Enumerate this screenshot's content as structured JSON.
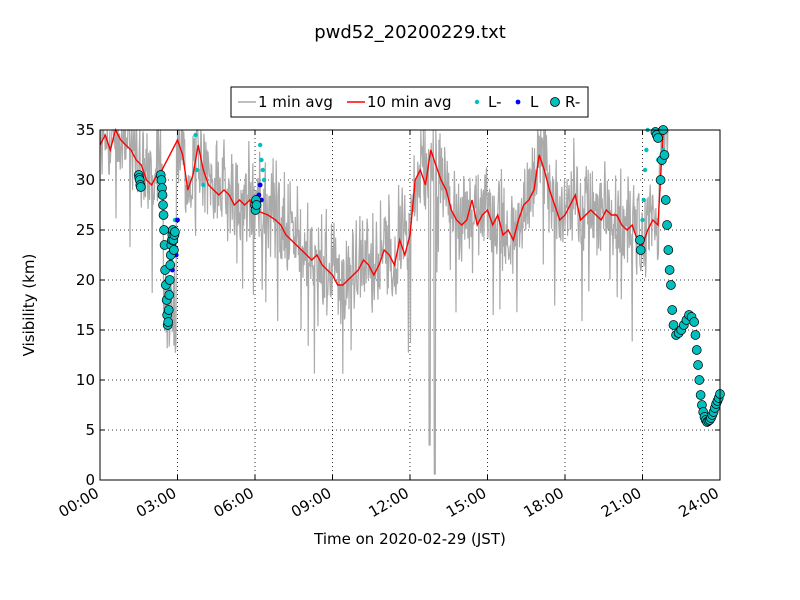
{
  "chart_data": {
    "type": "line",
    "title": "pwd52_20200229.txt",
    "xlabel": "Time on 2020-02-29 (JST)",
    "ylabel": "Visibility (km)",
    "xlim_hours": [
      0,
      24
    ],
    "ylim": [
      0,
      35
    ],
    "grid": true,
    "legend_position": "top-center, above plot",
    "x_tick_labels": [
      "00:00",
      "03:00",
      "06:00",
      "09:00",
      "12:00",
      "15:00",
      "18:00",
      "21:00",
      "24:00"
    ],
    "y_tick_labels": [
      "0",
      "5",
      "10",
      "15",
      "20",
      "25",
      "30",
      "35"
    ],
    "colors": {
      "one_min": "#aaaaaa",
      "ten_min": "#ff0000",
      "l_minus": "#00bfbf",
      "l": "#0000ff",
      "r_minus": "#00bfbf"
    },
    "series": [
      {
        "name": "10 min avg",
        "x_hours": [
          0.0,
          0.2,
          0.4,
          0.6,
          0.8,
          1.0,
          1.2,
          1.4,
          1.6,
          1.8,
          2.0,
          2.2,
          2.4,
          3.0,
          3.2,
          3.4,
          3.6,
          3.8,
          4.0,
          4.2,
          4.4,
          4.6,
          4.8,
          5.0,
          5.2,
          5.4,
          5.6,
          5.8,
          6.0,
          6.5,
          6.8,
          7.0,
          7.2,
          7.4,
          7.6,
          7.8,
          8.0,
          8.2,
          8.4,
          8.6,
          8.8,
          9.0,
          9.2,
          9.4,
          9.6,
          9.8,
          10.0,
          10.2,
          10.4,
          10.6,
          10.8,
          11.0,
          11.2,
          11.4,
          11.6,
          11.8,
          12.0,
          12.2,
          12.4,
          12.6,
          12.8,
          13.0,
          13.2,
          13.4,
          13.6,
          13.8,
          14.0,
          14.2,
          14.4,
          14.6,
          14.8,
          15.0,
          15.2,
          15.4,
          15.6,
          15.8,
          16.0,
          16.2,
          16.4,
          16.6,
          16.8,
          17.0,
          17.2,
          17.4,
          17.6,
          17.8,
          18.0,
          18.2,
          18.4,
          18.6,
          18.8,
          19.0,
          19.2,
          19.4,
          19.6,
          19.8,
          20.0,
          20.2,
          20.4,
          20.6,
          20.8,
          21.0,
          21.2,
          21.4,
          21.6,
          21.8,
          22.0
        ],
        "values": [
          33.5,
          34.5,
          33.0,
          35.0,
          34.0,
          33.5,
          33.0,
          32.0,
          31.5,
          30.0,
          29.5,
          30.5,
          31.0,
          34.0,
          32.5,
          29.0,
          30.5,
          33.5,
          31.0,
          29.5,
          29.0,
          28.5,
          29.0,
          28.5,
          27.5,
          28.0,
          27.5,
          28.0,
          27.0,
          26.5,
          26.0,
          25.5,
          24.5,
          24.0,
          23.5,
          23.0,
          22.5,
          22.0,
          22.5,
          21.5,
          21.0,
          20.5,
          19.5,
          19.5,
          20.0,
          20.5,
          21.0,
          22.0,
          21.5,
          20.5,
          21.5,
          23.0,
          22.5,
          21.5,
          24.0,
          22.5,
          24.5,
          30.0,
          31.0,
          29.5,
          33.0,
          31.5,
          30.0,
          29.0,
          27.0,
          26.0,
          25.5,
          26.0,
          28.0,
          25.5,
          26.5,
          27.0,
          25.5,
          26.5,
          24.5,
          25.0,
          24.0,
          26.0,
          27.5,
          28.0,
          29.0,
          32.5,
          31.0,
          29.0,
          27.5,
          26.0,
          26.5,
          27.5,
          28.5,
          26.0,
          26.5,
          27.0,
          26.5,
          26.0,
          27.0,
          26.5,
          26.5,
          25.5,
          25.0,
          25.5,
          24.0,
          23.5,
          25.0,
          26.0,
          25.5,
          35.0,
          35.0
        ]
      },
      {
        "name": "1 min avg"
      },
      {
        "name": "L-",
        "x_hours": [
          2.7,
          2.75,
          2.8,
          2.85,
          2.9,
          2.95,
          3.7,
          3.75,
          4.0,
          6.2,
          6.25,
          6.3,
          6.35,
          21.0,
          21.05,
          21.1,
          21.15,
          21.2,
          21.6,
          21.8,
          21.9
        ],
        "values": [
          19.0,
          22.0,
          24.5,
          25.0,
          26.0,
          23.0,
          34.5,
          31.0,
          29.5,
          33.5,
          32.0,
          31.0,
          30.0,
          26.0,
          28.0,
          31.0,
          33.0,
          35.0,
          32.0,
          33.0,
          35.0
        ]
      },
      {
        "name": "L",
        "x_hours": [
          2.8,
          2.85,
          2.9,
          2.95,
          3.0,
          6.15,
          6.2,
          6.25
        ],
        "values": [
          21.0,
          23.5,
          24.0,
          22.5,
          26.0,
          28.5,
          29.5,
          28.0
        ]
      },
      {
        "name": "R-",
        "x_hours": [
          1.5,
          1.52,
          1.54,
          1.56,
          1.58,
          2.35,
          2.38,
          2.4,
          2.42,
          2.44,
          2.46,
          2.48,
          2.5,
          2.52,
          2.55,
          2.58,
          2.6,
          2.62,
          2.64,
          2.66,
          2.68,
          2.7,
          2.72,
          2.74,
          2.76,
          2.78,
          2.8,
          2.82,
          2.84,
          2.86,
          2.88,
          2.9,
          6.0,
          6.02,
          6.04,
          6.06,
          20.9,
          20.93,
          21.5,
          21.55,
          21.6,
          21.7,
          21.75,
          21.8,
          21.85,
          21.9,
          21.95,
          22.0,
          22.05,
          22.1,
          22.15,
          22.2,
          22.3,
          22.4,
          22.5,
          22.6,
          22.7,
          22.8,
          22.9,
          23.0,
          23.05,
          23.1,
          23.15,
          23.2,
          23.25,
          23.3,
          23.35,
          23.4,
          23.45,
          23.5,
          23.55,
          23.6,
          23.65,
          23.7,
          23.75,
          23.8,
          23.85,
          23.9,
          23.95,
          24.0
        ],
        "values": [
          30.5,
          30.2,
          30.0,
          29.5,
          29.3,
          30.5,
          30.0,
          29.2,
          28.5,
          27.5,
          26.5,
          25.0,
          23.5,
          21.0,
          19.5,
          18.0,
          16.5,
          15.5,
          15.8,
          17.0,
          18.5,
          20.0,
          21.5,
          22.5,
          23.5,
          24.0,
          24.5,
          25.0,
          24.0,
          23.0,
          24.5,
          24.8,
          27.5,
          27.0,
          28.0,
          27.5,
          24.0,
          23.0,
          34.8,
          34.5,
          34.2,
          30.0,
          32.0,
          35.0,
          32.5,
          28.0,
          25.5,
          23.0,
          21.0,
          19.5,
          17.0,
          15.5,
          14.5,
          14.7,
          15.0,
          15.5,
          16.0,
          16.5,
          16.3,
          15.8,
          14.5,
          13.0,
          11.5,
          10.0,
          8.5,
          7.5,
          6.8,
          6.3,
          6.0,
          5.8,
          5.9,
          6.0,
          6.2,
          6.5,
          6.8,
          7.2,
          7.6,
          7.9,
          8.2,
          8.6
        ]
      }
    ]
  }
}
